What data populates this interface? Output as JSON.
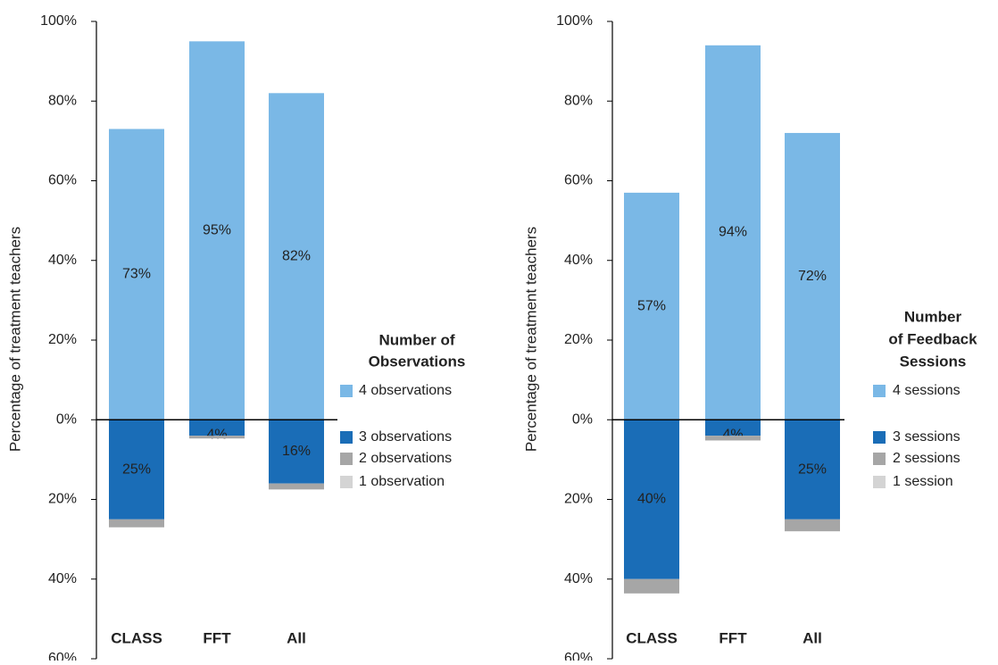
{
  "chart_data": [
    {
      "type": "bar",
      "stacked": true,
      "y_label": "Percentage of treatment teachers",
      "categories": [
        "CLASS",
        "FFT",
        "All"
      ],
      "legend_title": [
        "Number of",
        "Observations"
      ],
      "ylim": [
        -60,
        100
      ],
      "yticks": [
        {
          "value": -60,
          "label": "60%"
        },
        {
          "value": -40,
          "label": "40%"
        },
        {
          "value": -20,
          "label": "20%"
        },
        {
          "value": 0,
          "label": "0%"
        },
        {
          "value": 20,
          "label": "20%"
        },
        {
          "value": 40,
          "label": "40%"
        },
        {
          "value": 60,
          "label": "60%"
        },
        {
          "value": 80,
          "label": "80%"
        },
        {
          "value": 100,
          "label": "100%"
        }
      ],
      "series": [
        {
          "name": "4 observations",
          "color": "#7ab8e6",
          "values": [
            73,
            95,
            82
          ],
          "value_labels": [
            "73%",
            "95%",
            "82%"
          ]
        },
        {
          "name": "3 observations",
          "color": "#1a6db7",
          "values": [
            -25,
            -4,
            -16
          ],
          "value_labels": [
            "25%",
            "4%",
            "16%"
          ]
        },
        {
          "name": "2 observations",
          "color": "#a6a6a6",
          "values": [
            -2,
            -0.7,
            -1.5
          ]
        },
        {
          "name": "1 observation",
          "color": "#d4d4d4",
          "values": [
            0,
            0,
            0
          ]
        }
      ]
    },
    {
      "type": "bar",
      "stacked": true,
      "y_label": "Percentage of treatment teachers",
      "categories": [
        "CLASS",
        "FFT",
        "All"
      ],
      "legend_title": [
        "Number",
        "of Feedback",
        "Sessions"
      ],
      "ylim": [
        -60,
        100
      ],
      "yticks": [
        {
          "value": -60,
          "label": "60%"
        },
        {
          "value": -40,
          "label": "40%"
        },
        {
          "value": -20,
          "label": "20%"
        },
        {
          "value": 0,
          "label": "0%"
        },
        {
          "value": 20,
          "label": "20%"
        },
        {
          "value": 40,
          "label": "40%"
        },
        {
          "value": 60,
          "label": "60%"
        },
        {
          "value": 80,
          "label": "80%"
        },
        {
          "value": 100,
          "label": "100%"
        }
      ],
      "series": [
        {
          "name": "4 sessions",
          "color": "#7ab8e6",
          "values": [
            57,
            94,
            72
          ],
          "value_labels": [
            "57%",
            "94%",
            "72%"
          ]
        },
        {
          "name": "3 sessions",
          "color": "#1a6db7",
          "values": [
            -40,
            -4,
            -25
          ],
          "value_labels": [
            "40%",
            "4%",
            "25%"
          ]
        },
        {
          "name": "2 sessions",
          "color": "#a6a6a6",
          "values": [
            -3.6,
            -1.2,
            -3
          ],
          "value_labels": null
        },
        {
          "name": "1 session",
          "color": "#d4d4d4",
          "values": [
            0,
            0,
            0
          ]
        }
      ]
    }
  ]
}
